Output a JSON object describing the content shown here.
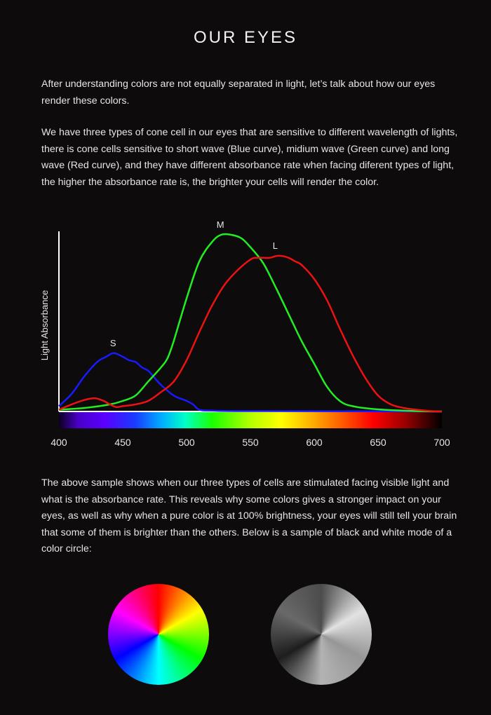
{
  "page": {
    "title": "OUR EYES",
    "paragraphs": [
      "After understanding colors are not equally separated in light, let’s talk about how our eyes render these colors.",
      "We have three types of cone cell in our eyes that are sensitive to different wavelength of lights, there is cone cells sensitive to short wave (Blue curve), midium wave (Green curve) and long wave (Red curve), and they have different absorbance rate when facing diferent types of light, the higher the absorbance rate is, the brighter your cells will render the color.",
      "The above sample shows when our three types of cells are stimulated facing visible light and what is the absorbance rate. This reveals why some colors gives a stronger impact on your eyes, as well as why when a pure color is at 100% brightness, your eyes will still tell your brain that some of them is brighter than the others. Below is a sample of black and white mode of a color circle:"
    ]
  },
  "chart_data": {
    "type": "line",
    "title": "",
    "xlabel": "",
    "ylabel": "Light Absorbance",
    "xlim": [
      400,
      700
    ],
    "ylim": [
      0,
      1
    ],
    "x_ticks": [
      400,
      450,
      500,
      550,
      600,
      650,
      700
    ],
    "grid": false,
    "spectrum_bar": true,
    "series": [
      {
        "name": "S",
        "color": "#1a1aff",
        "points": [
          [
            400,
            0.03
          ],
          [
            410,
            0.1
          ],
          [
            420,
            0.2
          ],
          [
            430,
            0.28
          ],
          [
            437,
            0.31
          ],
          [
            443,
            0.33
          ],
          [
            450,
            0.31
          ],
          [
            455,
            0.29
          ],
          [
            460,
            0.28
          ],
          [
            465,
            0.25
          ],
          [
            470,
            0.23
          ],
          [
            475,
            0.19
          ],
          [
            480,
            0.15
          ],
          [
            490,
            0.09
          ],
          [
            500,
            0.06
          ],
          [
            505,
            0.04
          ],
          [
            510,
            0.01
          ],
          [
            520,
            0.005
          ],
          [
            550,
            0.002
          ],
          [
            700,
            0
          ]
        ]
      },
      {
        "name": "M",
        "color": "#22ee22",
        "points": [
          [
            400,
            0.01
          ],
          [
            420,
            0.02
          ],
          [
            440,
            0.04
          ],
          [
            450,
            0.06
          ],
          [
            460,
            0.09
          ],
          [
            470,
            0.17
          ],
          [
            480,
            0.25
          ],
          [
            485,
            0.3
          ],
          [
            490,
            0.4
          ],
          [
            500,
            0.64
          ],
          [
            510,
            0.85
          ],
          [
            520,
            0.96
          ],
          [
            527,
            1.0
          ],
          [
            535,
            1.0
          ],
          [
            543,
            0.98
          ],
          [
            550,
            0.93
          ],
          [
            560,
            0.84
          ],
          [
            570,
            0.7
          ],
          [
            580,
            0.55
          ],
          [
            590,
            0.4
          ],
          [
            600,
            0.27
          ],
          [
            610,
            0.14
          ],
          [
            620,
            0.06
          ],
          [
            630,
            0.03
          ],
          [
            650,
            0.012
          ],
          [
            680,
            0.002
          ],
          [
            700,
            0
          ]
        ]
      },
      {
        "name": "L",
        "color": "#ee1111",
        "points": [
          [
            400,
            0.01
          ],
          [
            410,
            0.04
          ],
          [
            420,
            0.065
          ],
          [
            428,
            0.075
          ],
          [
            435,
            0.06
          ],
          [
            440,
            0.04
          ],
          [
            445,
            0.025
          ],
          [
            450,
            0.03
          ],
          [
            460,
            0.04
          ],
          [
            470,
            0.06
          ],
          [
            480,
            0.11
          ],
          [
            490,
            0.17
          ],
          [
            500,
            0.29
          ],
          [
            510,
            0.45
          ],
          [
            520,
            0.6
          ],
          [
            530,
            0.72
          ],
          [
            540,
            0.8
          ],
          [
            550,
            0.86
          ],
          [
            555,
            0.87
          ],
          [
            565,
            0.87
          ],
          [
            570,
            0.88
          ],
          [
            575,
            0.88
          ],
          [
            580,
            0.87
          ],
          [
            585,
            0.85
          ],
          [
            590,
            0.83
          ],
          [
            600,
            0.75
          ],
          [
            610,
            0.63
          ],
          [
            620,
            0.47
          ],
          [
            630,
            0.32
          ],
          [
            640,
            0.19
          ],
          [
            650,
            0.09
          ],
          [
            660,
            0.04
          ],
          [
            670,
            0.02
          ],
          [
            680,
            0.01
          ],
          [
            690,
            0.003
          ],
          [
            700,
            0
          ]
        ]
      }
    ]
  }
}
